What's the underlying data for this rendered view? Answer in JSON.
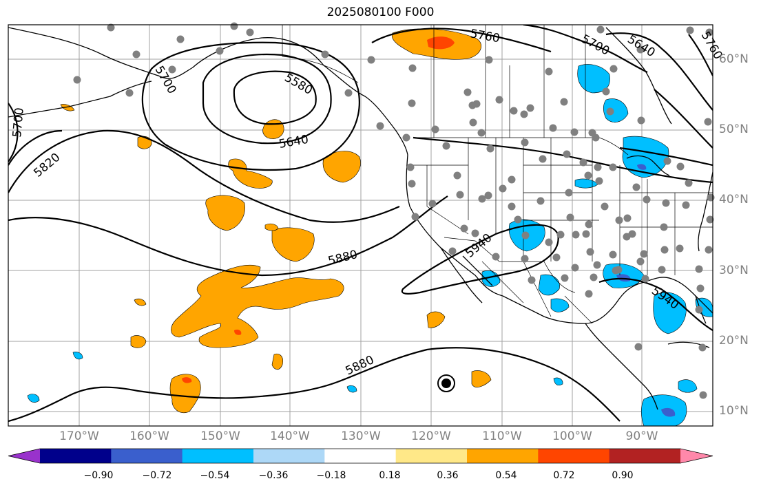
{
  "title": "2025080100 F000",
  "map": {
    "longitude_labels": [
      "170°W",
      "160°W",
      "150°W",
      "140°W",
      "130°W",
      "120°W",
      "110°W",
      "100°W",
      "90°W"
    ],
    "latitude_labels": [
      "60°N",
      "50°N",
      "40°N",
      "30°N",
      "20°N",
      "10°N"
    ],
    "contour_labels": [
      "5760",
      "5700",
      "5640",
      "5700",
      "5580",
      "5640",
      "5700",
      "5820",
      "5880",
      "5940",
      "5880",
      "5940",
      "5760"
    ],
    "grid": true,
    "coastlines": true,
    "state_borders": true,
    "hurricane_symbol": "tropical-cyclone-icon"
  },
  "colorbar": {
    "tick_labels": [
      "−0.90",
      "−0.72",
      "−0.54",
      "−0.36",
      "−0.18",
      "0.18",
      "0.36",
      "0.54",
      "0.72",
      "0.90"
    ],
    "colors": [
      "#9932cc",
      "#00008b",
      "#3a5fcd",
      "#00bfff",
      "#add8f7",
      "#ffffff",
      "#ffe888",
      "#ffa500",
      "#ff4500",
      "#b22222",
      "#ff88aa"
    ],
    "extend": "both"
  }
}
